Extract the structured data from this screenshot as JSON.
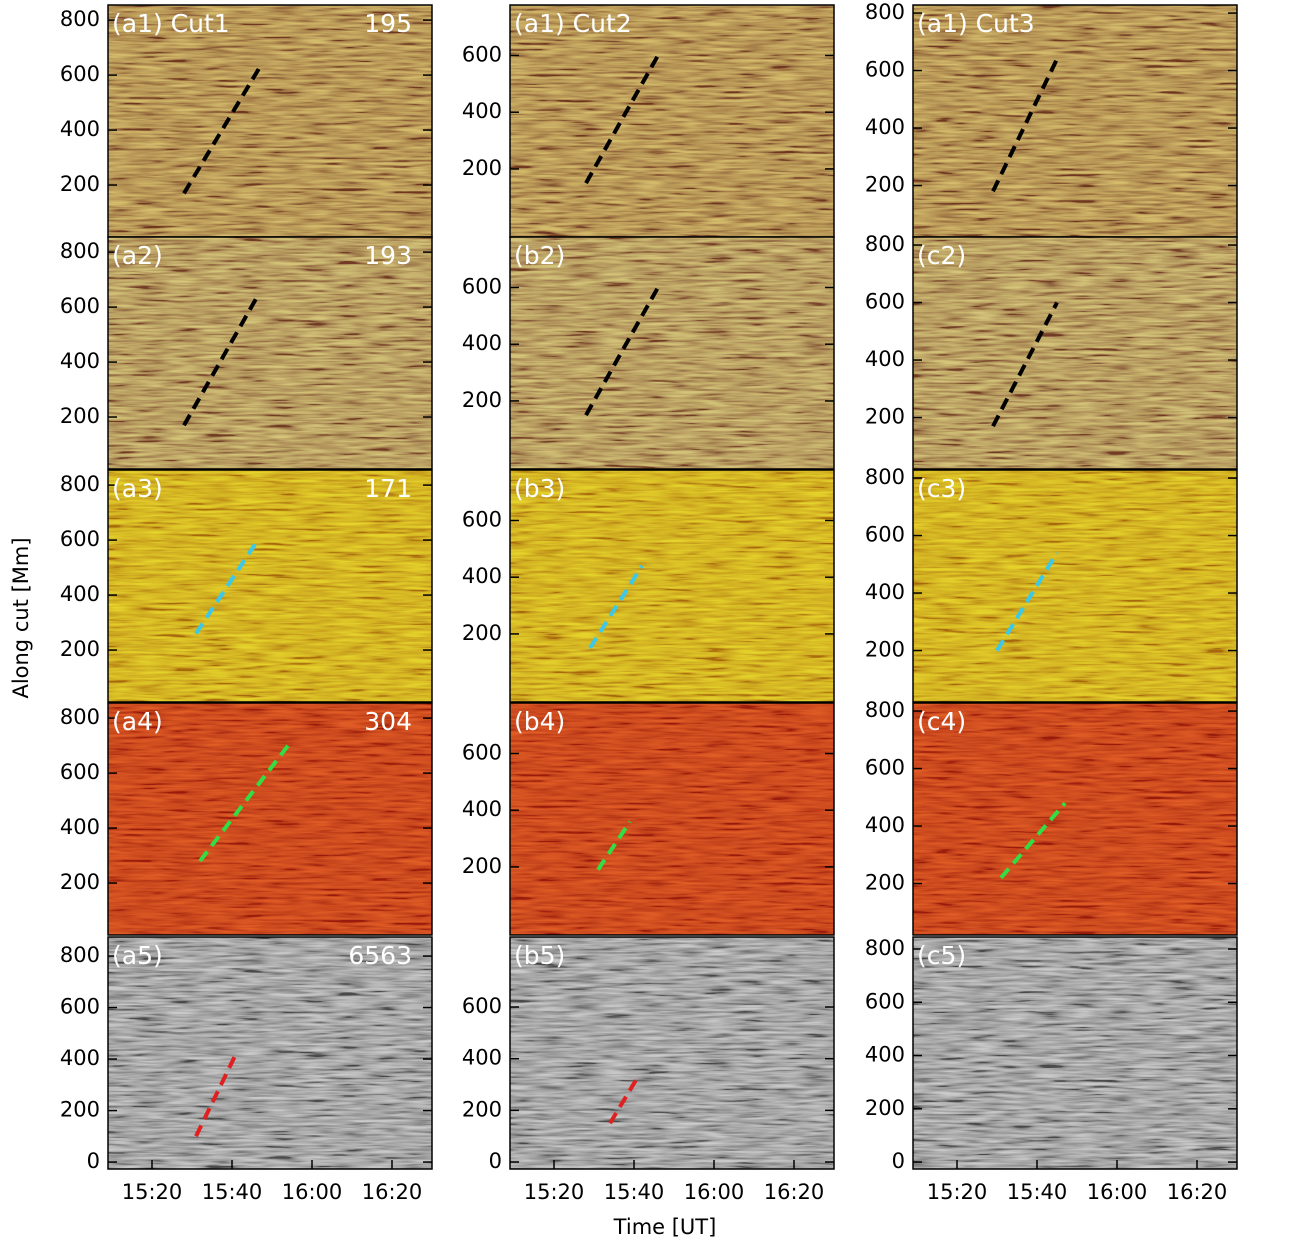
{
  "figure": {
    "xlabel": "Time [UT]",
    "ylabel": "Along cut [Mm]"
  },
  "chart_data": [
    {
      "type": "time-distance",
      "panel_label": "(a1) Cut1",
      "wavelength": "195",
      "background": "#a27a46",
      "xlim": [
        909,
        990
      ],
      "ylim": [
        11,
        855
      ],
      "yticks": [
        200,
        400,
        600,
        800
      ],
      "fits": [
        {
          "color": "#000000",
          "x": [
            928,
            947
          ],
          "y": [
            170,
            630
          ]
        }
      ]
    },
    {
      "type": "time-distance",
      "panel_label": "(a1) Cut2",
      "background": "#a27a46",
      "xlim": [
        909,
        990
      ],
      "ylim": [
        -40,
        778
      ],
      "yticks": [
        200,
        400,
        600
      ],
      "fits": [
        {
          "color": "#000000",
          "x": [
            928,
            946
          ],
          "y": [
            150,
            600
          ]
        }
      ]
    },
    {
      "type": "time-distance",
      "panel_label": "(a1) Cut3",
      "background": "#a27a46",
      "xlim": [
        909,
        990
      ],
      "ylim": [
        21,
        828
      ],
      "yticks": [
        200,
        400,
        600,
        800
      ],
      "fits": [
        {
          "color": "#000000",
          "x": [
            929,
            945
          ],
          "y": [
            180,
            640
          ]
        }
      ]
    },
    {
      "type": "time-distance",
      "panel_label": "(a2)",
      "wavelength": "193",
      "background": "#a3804f",
      "xlim": [
        909,
        990
      ],
      "ylim": [
        11,
        855
      ],
      "yticks": [
        200,
        400,
        600,
        800
      ],
      "fits": [
        {
          "color": "#000000",
          "x": [
            928,
            946
          ],
          "y": [
            170,
            630
          ]
        }
      ]
    },
    {
      "type": "time-distance",
      "panel_label": "(b2)",
      "background": "#a3804f",
      "xlim": [
        909,
        990
      ],
      "ylim": [
        -40,
        778
      ],
      "yticks": [
        200,
        400,
        600
      ],
      "fits": [
        {
          "color": "#000000",
          "x": [
            928,
            946
          ],
          "y": [
            150,
            600
          ]
        }
      ]
    },
    {
      "type": "time-distance",
      "panel_label": "(c2)",
      "background": "#a3804f",
      "xlim": [
        909,
        990
      ],
      "ylim": [
        21,
        828
      ],
      "yticks": [
        200,
        400,
        600,
        800
      ],
      "fits": [
        {
          "color": "#000000",
          "x": [
            929,
            945
          ],
          "y": [
            170,
            600
          ]
        }
      ]
    },
    {
      "type": "time-distance",
      "panel_label": "(a3)",
      "wavelength": "171",
      "background": "#c79e1c",
      "xlim": [
        909,
        990
      ],
      "ylim": [
        11,
        855
      ],
      "yticks": [
        200,
        400,
        600,
        800
      ],
      "fits": [
        {
          "color": "#3cc8e6",
          "x": [
            931,
            946
          ],
          "y": [
            260,
            590
          ]
        }
      ]
    },
    {
      "type": "time-distance",
      "panel_label": "(b3)",
      "background": "#c79e1c",
      "xlim": [
        909,
        990
      ],
      "ylim": [
        -40,
        778
      ],
      "yticks": [
        200,
        400,
        600
      ],
      "fits": [
        {
          "color": "#3cc8e6",
          "x": [
            929,
            942
          ],
          "y": [
            150,
            440
          ]
        }
      ]
    },
    {
      "type": "time-distance",
      "panel_label": "(c3)",
      "background": "#c79e1c",
      "xlim": [
        909,
        990
      ],
      "ylim": [
        21,
        828
      ],
      "yticks": [
        200,
        400,
        600,
        800
      ],
      "fits": [
        {
          "color": "#3cc8e6",
          "x": [
            930,
            945
          ],
          "y": [
            200,
            540
          ]
        }
      ]
    },
    {
      "type": "time-distance",
      "panel_label": "(a4)",
      "wavelength": "304",
      "background": "#bd3c18",
      "xlim": [
        909,
        990
      ],
      "ylim": [
        11,
        855
      ],
      "yticks": [
        200,
        400,
        600,
        800
      ],
      "fits": [
        {
          "color": "#33dd44",
          "x": [
            932,
            954
          ],
          "y": [
            280,
            700
          ]
        }
      ]
    },
    {
      "type": "time-distance",
      "panel_label": "(b4)",
      "background": "#bd3c18",
      "xlim": [
        909,
        990
      ],
      "ylim": [
        -40,
        778
      ],
      "yticks": [
        200,
        400,
        600
      ],
      "fits": [
        {
          "color": "#33dd44",
          "x": [
            931,
            939
          ],
          "y": [
            190,
            360
          ]
        }
      ]
    },
    {
      "type": "time-distance",
      "panel_label": "(c4)",
      "background": "#bd3c18",
      "xlim": [
        909,
        990
      ],
      "ylim": [
        21,
        828
      ],
      "yticks": [
        200,
        400,
        600,
        800
      ],
      "fits": [
        {
          "color": "#33dd44",
          "x": [
            931,
            947
          ],
          "y": [
            220,
            480
          ]
        }
      ]
    },
    {
      "type": "time-distance",
      "panel_label": "(a5)",
      "wavelength": "6563",
      "background": "#8a8a8a",
      "xlim": [
        909,
        990
      ],
      "ylim": [
        -27,
        874
      ],
      "yticks": [
        0,
        200,
        400,
        600,
        800
      ],
      "xticks": [
        {
          "value": 920,
          "label": "15:20"
        },
        {
          "value": 940,
          "label": "15:40"
        },
        {
          "value": 960,
          "label": "16:00"
        },
        {
          "value": 980,
          "label": "16:20"
        }
      ],
      "fits": [
        {
          "color": "#e02020",
          "x": [
            931,
            941
          ],
          "y": [
            100,
            420
          ]
        }
      ]
    },
    {
      "type": "time-distance",
      "panel_label": "(b5)",
      "background": "#8a8a8a",
      "xlim": [
        909,
        990
      ],
      "ylim": [
        -27,
        871
      ],
      "yticks": [
        0,
        200,
        400,
        600
      ],
      "xticks": [
        {
          "value": 920,
          "label": "15:20"
        },
        {
          "value": 940,
          "label": "15:40"
        },
        {
          "value": 960,
          "label": "16:00"
        },
        {
          "value": 980,
          "label": "16:20"
        }
      ],
      "fits": [
        {
          "color": "#e02020",
          "x": [
            934,
            941
          ],
          "y": [
            150,
            330
          ]
        }
      ]
    },
    {
      "type": "time-distance",
      "panel_label": "(c5)",
      "background": "#8a8a8a",
      "xlim": [
        909,
        990
      ],
      "ylim": [
        -26,
        845
      ],
      "yticks": [
        0,
        200,
        400,
        600,
        800
      ],
      "xticks": [
        {
          "value": 920,
          "label": "15:20"
        },
        {
          "value": 940,
          "label": "15:40"
        },
        {
          "value": 960,
          "label": "16:00"
        },
        {
          "value": 980,
          "label": "16:20"
        }
      ],
      "fits": []
    }
  ]
}
